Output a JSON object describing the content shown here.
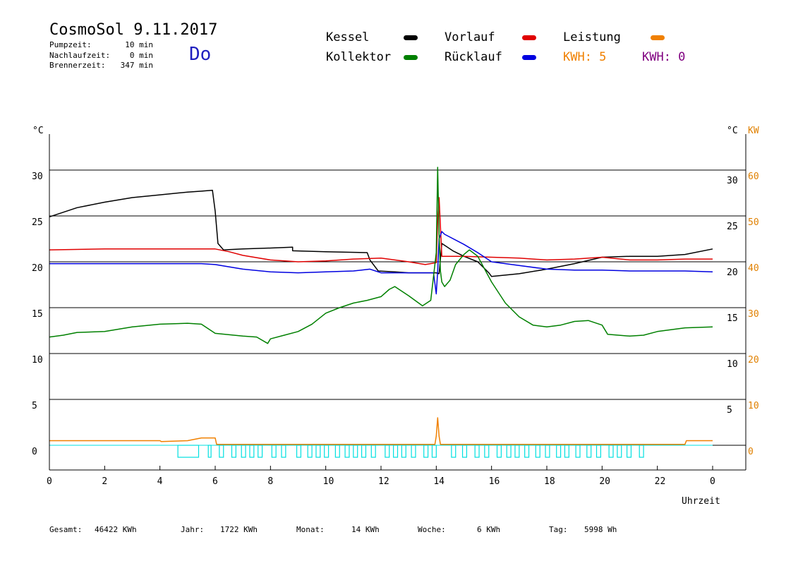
{
  "header": {
    "title": "CosmoSol 9.11.2017",
    "weekday": "Do",
    "stats": [
      {
        "label": "Pumpzeit:",
        "value": "10 min"
      },
      {
        "label": "Nachlaufzeit:",
        "value": "0 min"
      },
      {
        "label": "Brennerzeit:",
        "value": "347 min"
      }
    ]
  },
  "legend": {
    "kessel": "Kessel",
    "vorlauf": "Vorlauf",
    "leistung": "Leistung",
    "kollektor": "Kollektor",
    "ruecklauf": "Rücklauf",
    "kwh_orange": "KWH: 5",
    "kwh_purple": "KWH: 0"
  },
  "colors": {
    "kessel": "#000000",
    "vorlauf": "#e00000",
    "ruecklauf": "#0000e0",
    "kollektor": "#008000",
    "leistung": "#f08000",
    "pump": "#00e0e0",
    "kwh_purple": "#800080",
    "weekday": "#1f1fbf"
  },
  "totals": [
    {
      "label": "Gesamt:",
      "value": "46422 KWh"
    },
    {
      "label": "Jahr:",
      "value": "1722 KWh"
    },
    {
      "label": "Monat:",
      "value": "14 KWh"
    },
    {
      "label": "Woche:",
      "value": "6 KWh"
    },
    {
      "label": "Tag:",
      "value": "5998 Wh"
    }
  ],
  "chart_data": {
    "type": "line",
    "xlabel": "Uhrzeit",
    "ylabel_left": "°C",
    "ylabel_right": "°C",
    "ylabel_right2": "KW",
    "xlim": [
      0,
      24
    ],
    "ylim": [
      -2.5,
      35
    ],
    "ylim_kw": [
      -5,
      70
    ],
    "x_ticks": [
      "0",
      "2",
      "4",
      "6",
      "8",
      "10",
      "12",
      "14",
      "16",
      "18",
      "20",
      "22",
      "0"
    ],
    "y_ticks": [
      "0",
      "5",
      "10",
      "15",
      "20",
      "25",
      "30"
    ],
    "y2_ticks": [
      "0",
      "10",
      "20",
      "30",
      "40",
      "50",
      "60"
    ],
    "grid": "horizontal",
    "series": [
      {
        "name": "Kessel",
        "key": "kessel",
        "x": [
          0,
          1,
          2,
          3,
          4,
          5,
          5.5,
          5.9,
          6.0,
          6.1,
          6.3,
          7,
          8,
          8.8,
          8.8,
          10,
          11.5,
          11.6,
          11.9,
          12.5,
          13,
          14,
          14.1,
          14.2,
          14.6,
          15,
          15.5,
          15.9,
          16,
          17,
          18,
          19,
          20,
          21,
          22,
          23,
          24
        ],
        "y": [
          24.9,
          25.9,
          26.5,
          27.0,
          27.3,
          27.6,
          27.7,
          27.8,
          25.5,
          22.0,
          21.3,
          21.4,
          21.5,
          21.6,
          21.2,
          21.1,
          21.0,
          20.2,
          19.0,
          18.9,
          18.8,
          18.8,
          18.7,
          22.0,
          21.2,
          20.6,
          20.0,
          18.8,
          18.4,
          18.7,
          19.2,
          19.8,
          20.5,
          20.6,
          20.6,
          20.8,
          21.4
        ]
      },
      {
        "name": "Vorlauf",
        "key": "vorlauf",
        "x": [
          0,
          2,
          4,
          6,
          6.5,
          7,
          8,
          9,
          10,
          11,
          12,
          13,
          13.6,
          14,
          14.05,
          14.1,
          14.2,
          15,
          16,
          17,
          18,
          19,
          20,
          21,
          22,
          23,
          24
        ],
        "y": [
          21.3,
          21.4,
          21.4,
          21.4,
          21.1,
          20.7,
          20.2,
          20.0,
          20.1,
          20.3,
          20.4,
          20.0,
          19.7,
          19.9,
          24.5,
          27.0,
          20.6,
          20.6,
          20.5,
          20.4,
          20.2,
          20.3,
          20.5,
          20.2,
          20.2,
          20.3,
          20.3
        ]
      },
      {
        "name": "Rücklauf",
        "key": "ruecklauf",
        "x": [
          0,
          2,
          4,
          5.5,
          6,
          7,
          8,
          9,
          10,
          11,
          11.6,
          12,
          13,
          13.9,
          14.0,
          14.05,
          14.1,
          14.2,
          14.3,
          15,
          15.5,
          16,
          17,
          18,
          19,
          20,
          21,
          22,
          23,
          24
        ],
        "y": [
          19.8,
          19.8,
          19.8,
          19.8,
          19.7,
          19.2,
          18.9,
          18.8,
          18.9,
          19.0,
          19.2,
          18.8,
          18.8,
          18.8,
          16.5,
          19.0,
          22.5,
          23.3,
          23.0,
          21.9,
          21.0,
          20.0,
          19.6,
          19.2,
          19.1,
          19.1,
          19.0,
          19.0,
          19.0,
          18.9
        ]
      },
      {
        "name": "Kollektor",
        "key": "kollektor",
        "x": [
          0,
          0.5,
          1,
          2,
          3,
          4,
          5,
          5.5,
          6,
          7,
          7.5,
          7.9,
          8,
          8.5,
          9,
          9.5,
          10,
          10.5,
          11,
          11.5,
          12,
          12.3,
          12.5,
          13,
          13.5,
          13.8,
          14,
          14.05,
          14.1,
          14.15,
          14.2,
          14.3,
          14.5,
          14.7,
          15,
          15.2,
          15.5,
          16,
          16.5,
          17,
          17.5,
          18,
          18.5,
          19,
          19.5,
          20,
          20.2,
          21,
          21.5,
          22,
          23,
          24
        ],
        "y": [
          11.8,
          12.0,
          12.3,
          12.4,
          12.9,
          13.2,
          13.3,
          13.2,
          12.2,
          11.9,
          11.8,
          11.1,
          11.6,
          12.0,
          12.4,
          13.2,
          14.4,
          15.0,
          15.5,
          15.8,
          16.2,
          17.0,
          17.3,
          16.3,
          15.2,
          15.8,
          21.0,
          30.3,
          23.0,
          19.0,
          17.8,
          17.3,
          18.0,
          19.7,
          20.8,
          21.3,
          20.6,
          17.8,
          15.5,
          14.0,
          13.1,
          12.9,
          13.1,
          13.5,
          13.6,
          13.1,
          12.1,
          11.9,
          12.0,
          12.4,
          12.8,
          12.9
        ]
      }
    ],
    "leistung": {
      "name": "Leistung",
      "key": "leistung",
      "x": [
        0,
        2,
        4,
        4.05,
        5.0,
        5.5,
        6.0,
        6.05,
        13.95,
        14.0,
        14.05,
        14.1,
        14.15,
        23.0,
        23.05,
        24.0
      ],
      "y": [
        0.5,
        0.5,
        0.5,
        0.4,
        0.5,
        0.8,
        0.8,
        0.1,
        0.1,
        1.0,
        3.0,
        1.0,
        0.1,
        0.1,
        0.5,
        0.5
      ]
    },
    "pump_intervals": [
      [
        4.65,
        5.4
      ],
      [
        5.75,
        5.85
      ],
      [
        6.15,
        6.3
      ],
      [
        6.6,
        6.75
      ],
      [
        6.95,
        7.1
      ],
      [
        7.25,
        7.4
      ],
      [
        7.55,
        7.7
      ],
      [
        8.05,
        8.2
      ],
      [
        8.4,
        8.55
      ],
      [
        8.95,
        9.1
      ],
      [
        9.35,
        9.5
      ],
      [
        9.65,
        9.8
      ],
      [
        9.95,
        10.1
      ],
      [
        10.35,
        10.5
      ],
      [
        10.7,
        10.85
      ],
      [
        11.0,
        11.15
      ],
      [
        11.3,
        11.45
      ],
      [
        11.65,
        11.8
      ],
      [
        12.15,
        12.3
      ],
      [
        12.45,
        12.6
      ],
      [
        12.75,
        12.9
      ],
      [
        13.1,
        13.25
      ],
      [
        13.55,
        13.7
      ],
      [
        13.85,
        14.0
      ],
      [
        14.55,
        14.7
      ],
      [
        14.95,
        15.1
      ],
      [
        15.4,
        15.55
      ],
      [
        15.75,
        15.9
      ],
      [
        16.2,
        16.35
      ],
      [
        16.55,
        16.7
      ],
      [
        16.85,
        17.0
      ],
      [
        17.2,
        17.35
      ],
      [
        17.6,
        17.75
      ],
      [
        17.95,
        18.1
      ],
      [
        18.35,
        18.5
      ],
      [
        18.65,
        18.8
      ],
      [
        19.05,
        19.2
      ],
      [
        19.45,
        19.6
      ],
      [
        19.8,
        19.95
      ],
      [
        20.25,
        20.4
      ],
      [
        20.55,
        20.7
      ],
      [
        20.9,
        21.05
      ],
      [
        21.35,
        21.5
      ]
    ]
  }
}
